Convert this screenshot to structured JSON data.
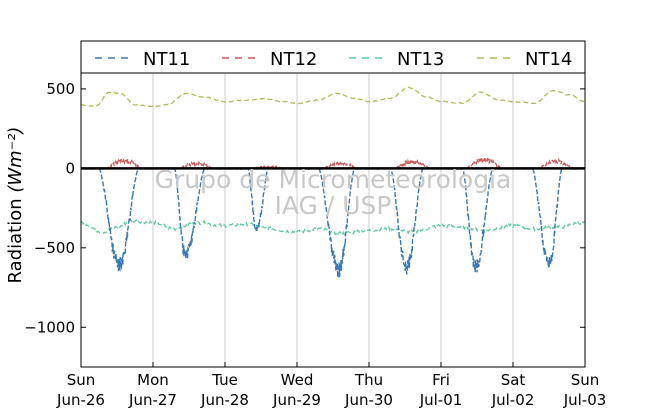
{
  "chart_data": {
    "type": "line",
    "title": "",
    "xlabel": "",
    "ylabel": "Radiation",
    "ylabel_unit": "(Wm⁻²)",
    "ylim": [
      -1250,
      600
    ],
    "yticks": [
      -1000,
      -500,
      0,
      500
    ],
    "ytick_labels": [
      "−1000",
      "−500",
      "0",
      "500"
    ],
    "xlim": [
      "2016-06-26 00:00",
      "2016-07-03 00:00"
    ],
    "xticks": [
      {
        "day": "Sun",
        "date": "Jun-26"
      },
      {
        "day": "Mon",
        "date": "Jun-27"
      },
      {
        "day": "Tue",
        "date": "Jun-28"
      },
      {
        "day": "Wed",
        "date": "Jun-29"
      },
      {
        "day": "Thu",
        "date": "Jun-30"
      },
      {
        "day": "Fri",
        "date": "Jul-01"
      },
      {
        "day": "Sat",
        "date": "Jul-02"
      },
      {
        "day": "Sun",
        "date": "Jul-03"
      }
    ],
    "grid": "vertical",
    "legend_position": "top",
    "watermark": [
      "Grupo de Micrometeorologia",
      "IAG / USP"
    ],
    "zero_line": true,
    "series": [
      {
        "name": "NT11",
        "color": "#3a78b0",
        "style": "dashed",
        "description_points": "daily negative troughs",
        "daily": [
          {
            "min": -660,
            "start": 0.25,
            "center": 0.53,
            "end": 0.8
          },
          {
            "min": -590,
            "start": 1.3,
            "center": 1.45,
            "end": 1.72
          },
          {
            "min": -420,
            "start": 2.32,
            "center": 2.44,
            "end": 2.6
          },
          {
            "min": -690,
            "start": 3.3,
            "center": 3.58,
            "end": 3.8
          },
          {
            "min": -680,
            "start": 4.3,
            "center": 4.52,
            "end": 4.75
          },
          {
            "min": -680,
            "start": 5.3,
            "center": 5.48,
            "end": 5.72
          },
          {
            "min": -650,
            "start": 6.27,
            "center": 6.5,
            "end": 6.68
          }
        ]
      },
      {
        "name": "NT12",
        "color": "#c85a5a",
        "style": "dashed",
        "daily_peak": [
          65,
          45,
          20,
          45,
          55,
          75,
          60
        ]
      },
      {
        "name": "NT13",
        "color": "#5cc8a0",
        "style": "dashed",
        "x": [
          0.0,
          0.3,
          0.5,
          0.7,
          1.0,
          1.3,
          1.6,
          2.0,
          2.3,
          2.6,
          3.0,
          3.3,
          3.6,
          4.0,
          4.3,
          4.6,
          5.0,
          5.3,
          5.6,
          6.0,
          6.3,
          6.6,
          7.0
        ],
        "values": [
          -340,
          -400,
          -370,
          -330,
          -340,
          -380,
          -340,
          -360,
          -350,
          -380,
          -400,
          -380,
          -410,
          -390,
          -380,
          -400,
          -360,
          -370,
          -390,
          -360,
          -380,
          -370,
          -340
        ]
      },
      {
        "name": "NT14",
        "color": "#b5b85a",
        "style": "dashed",
        "x": [
          0.0,
          0.2,
          0.4,
          0.55,
          0.75,
          1.0,
          1.2,
          1.45,
          1.7,
          2.0,
          2.3,
          2.55,
          2.8,
          3.0,
          3.3,
          3.55,
          3.8,
          4.0,
          4.3,
          4.55,
          4.8,
          5.0,
          5.3,
          5.55,
          5.8,
          6.0,
          6.3,
          6.55,
          6.8,
          7.0
        ],
        "values": [
          400,
          390,
          480,
          470,
          400,
          390,
          400,
          470,
          450,
          420,
          430,
          440,
          420,
          410,
          430,
          470,
          440,
          420,
          440,
          510,
          450,
          420,
          410,
          480,
          430,
          420,
          410,
          490,
          460,
          420
        ]
      }
    ]
  }
}
